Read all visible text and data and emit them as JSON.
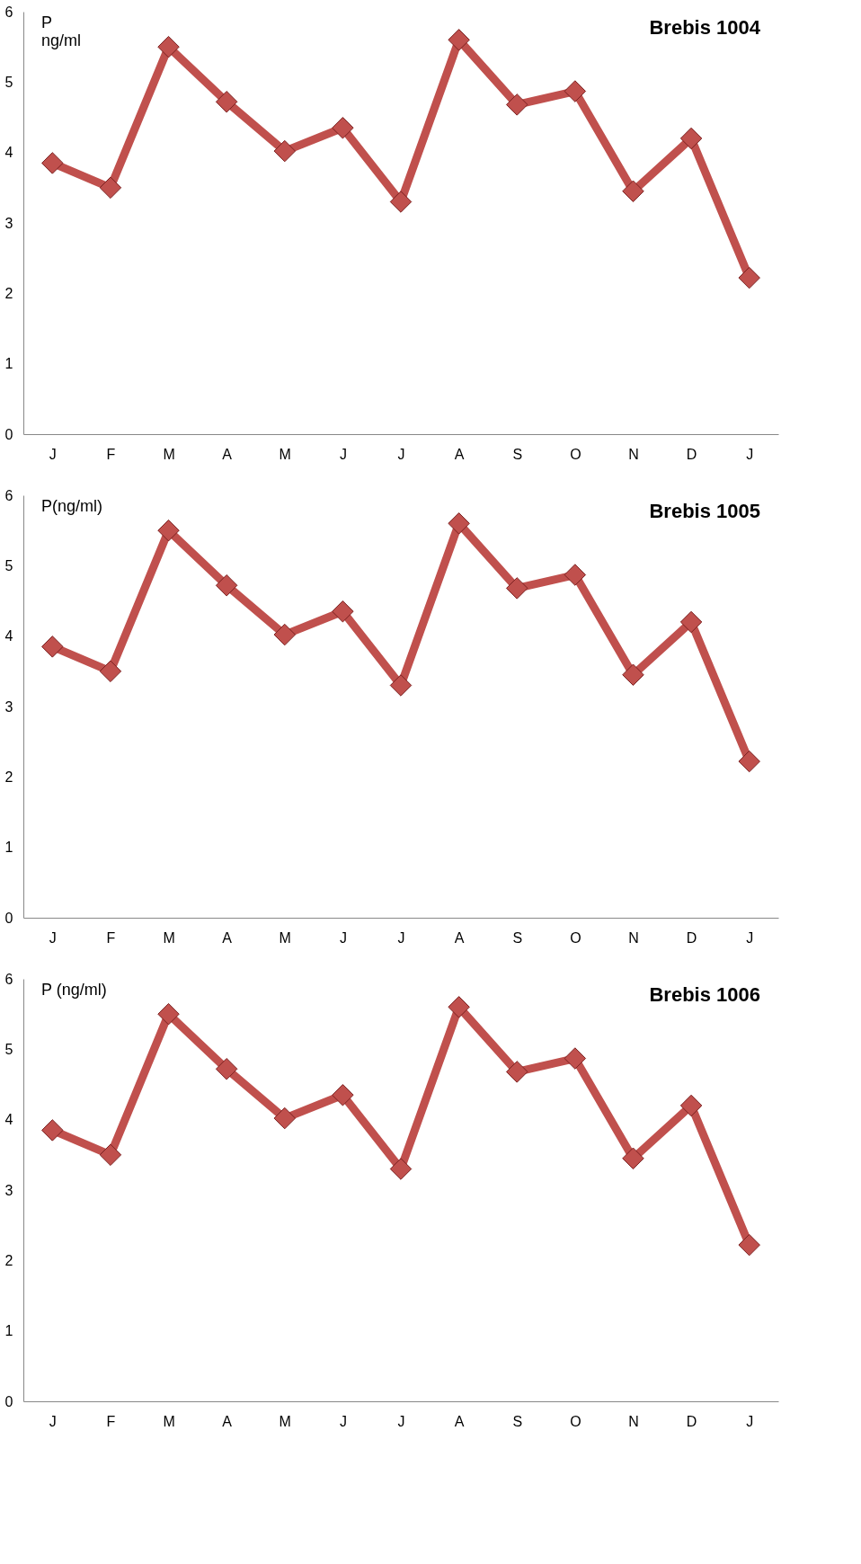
{
  "chart_data": [
    {
      "type": "line",
      "title": "Brebis 1004",
      "ylabel": "P\nng/ml",
      "categories": [
        "J",
        "F",
        "M",
        "A",
        "M",
        "J",
        "J",
        "A",
        "S",
        "O",
        "N",
        "D",
        "J"
      ],
      "series": [
        {
          "color": "#c0504d",
          "values": [
            3.85,
            3.5,
            5.5,
            4.72,
            4.02,
            4.35,
            3.3,
            5.6,
            4.68,
            4.87,
            3.45,
            4.2,
            2.22
          ]
        }
      ],
      "ylim": [
        0,
        6
      ],
      "yticks": [
        0,
        1,
        2,
        3,
        4,
        5,
        6
      ],
      "marker": "diamond"
    },
    {
      "type": "line",
      "title": "Brebis 1005",
      "ylabel": "P(ng/ml)",
      "categories": [
        "J",
        "F",
        "M",
        "A",
        "M",
        "J",
        "J",
        "A",
        "S",
        "O",
        "N",
        "D",
        "J"
      ],
      "series": [
        {
          "color": "#c0504d",
          "values": [
            3.85,
            3.5,
            5.5,
            4.72,
            4.02,
            4.35,
            3.3,
            5.6,
            4.68,
            4.87,
            3.45,
            4.2,
            2.22
          ]
        }
      ],
      "ylim": [
        0,
        6
      ],
      "yticks": [
        0,
        1,
        2,
        3,
        4,
        5,
        6
      ],
      "marker": "diamond"
    },
    {
      "type": "line",
      "title": "Brebis 1006",
      "ylabel": "P (ng/ml)",
      "categories": [
        "J",
        "F",
        "M",
        "A",
        "M",
        "J",
        "J",
        "A",
        "S",
        "O",
        "N",
        "D",
        "J"
      ],
      "series": [
        {
          "color": "#c0504d",
          "values": [
            3.85,
            3.5,
            5.5,
            4.72,
            4.02,
            4.35,
            3.3,
            5.6,
            4.68,
            4.87,
            3.45,
            4.2,
            2.22
          ]
        }
      ],
      "ylim": [
        0,
        6
      ],
      "yticks": [
        0,
        1,
        2,
        3,
        4,
        5,
        6
      ],
      "marker": "diamond"
    }
  ]
}
